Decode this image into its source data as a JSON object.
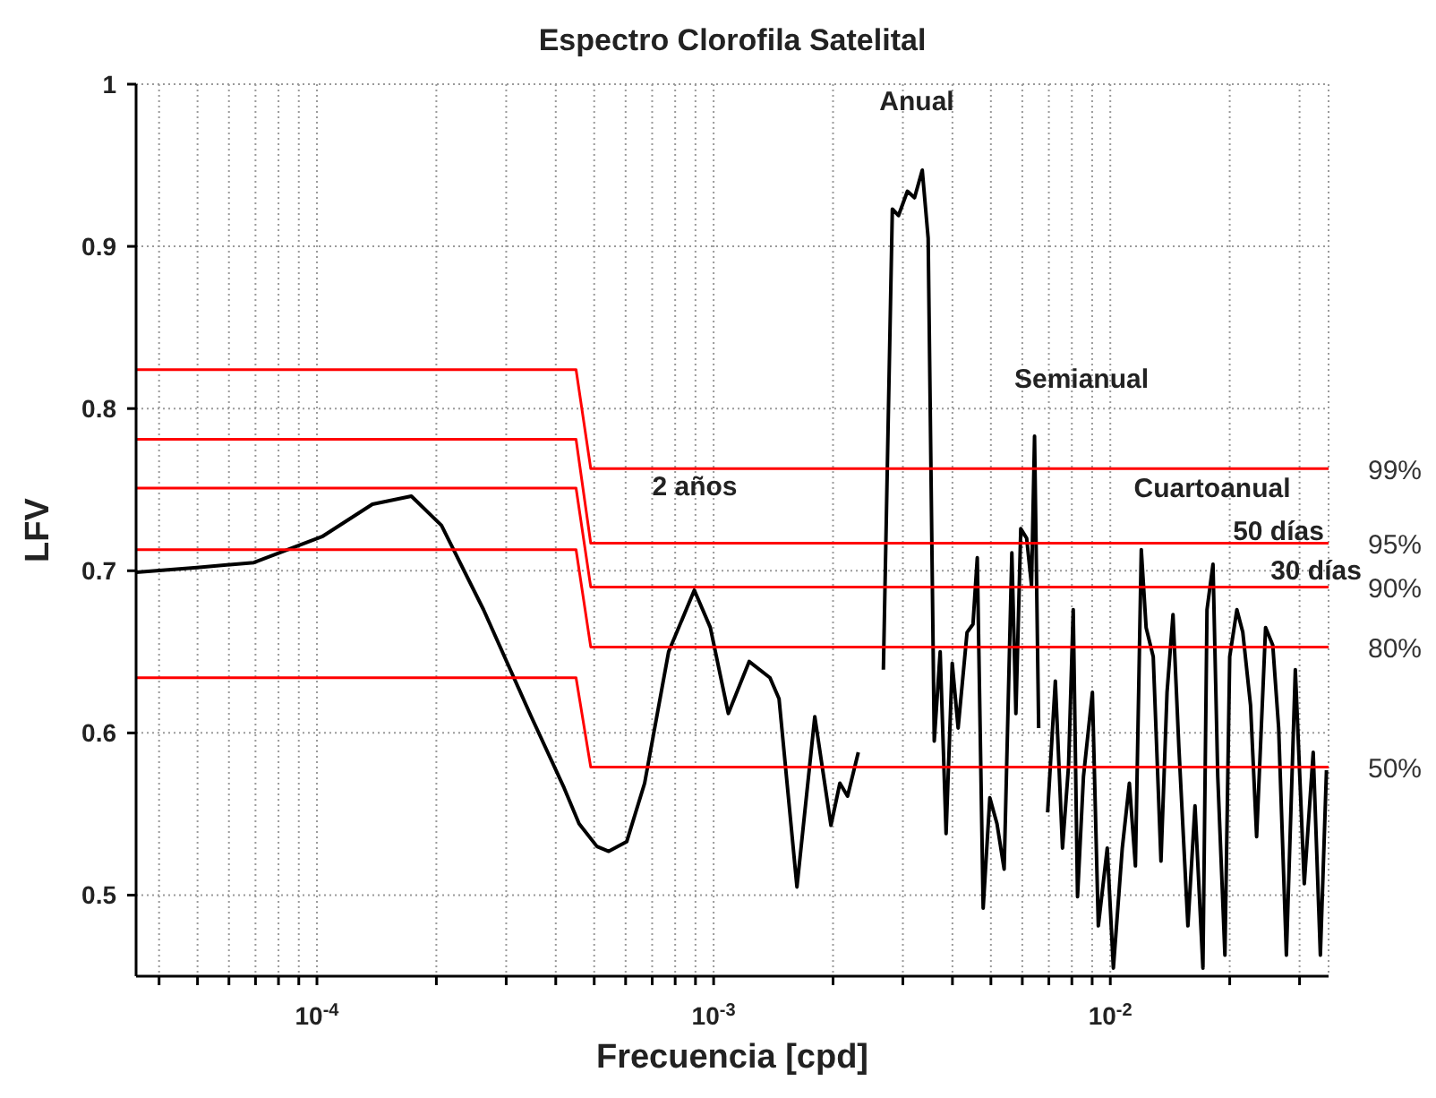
{
  "chart_data": {
    "type": "line",
    "title": "Espectro Clorofila Satelital",
    "xlabel": "Frecuencia [cpd]",
    "ylabel": "LFV",
    "log": "x",
    "grid": true,
    "xlim": [
      3.5e-05,
      0.0355
    ],
    "ylim": [
      0.45,
      1
    ],
    "xticks": [
      {
        "value": 4e-05,
        "label": null
      },
      {
        "value": 5e-05,
        "label": null
      },
      {
        "value": 6e-05,
        "label": null
      },
      {
        "value": 7e-05,
        "label": null
      },
      {
        "value": 8e-05,
        "label": null
      },
      {
        "value": 9e-05,
        "label": null
      },
      {
        "value": 0.0001,
        "label": "10$^{-4}$"
      },
      {
        "value": 0.0002,
        "label": null
      },
      {
        "value": 0.0003,
        "label": null
      },
      {
        "value": 0.0004,
        "label": null
      },
      {
        "value": 0.0005,
        "label": null
      },
      {
        "value": 0.0006,
        "label": null
      },
      {
        "value": 0.0007,
        "label": null
      },
      {
        "value": 0.0008,
        "label": null
      },
      {
        "value": 0.0009,
        "label": null
      },
      {
        "value": 0.001,
        "label": "10$^{-3}$"
      },
      {
        "value": 0.002,
        "label": null
      },
      {
        "value": 0.003,
        "label": null
      },
      {
        "value": 0.004,
        "label": null
      },
      {
        "value": 0.005,
        "label": null
      },
      {
        "value": 0.006,
        "label": null
      },
      {
        "value": 0.007,
        "label": null
      },
      {
        "value": 0.008,
        "label": null
      },
      {
        "value": 0.009,
        "label": null
      },
      {
        "value": 0.01,
        "label": "10$^{-2}$"
      },
      {
        "value": 0.02,
        "label": null
      },
      {
        "value": 0.03,
        "label": null
      }
    ],
    "yticks": [
      0.5,
      0.6,
      0.7,
      0.8,
      0.9,
      1
    ],
    "series": [
      {
        "color": "#000000",
        "x": [
          3.5e-05,
          4.98e-05,
          6.93e-05,
          0.000103,
          0.000138,
          0.000173,
          0.000206,
          0.000263,
          0.000347,
          0.00042,
          0.000458,
          0.000508,
          0.000544,
          0.000604,
          0.00067,
          0.00077,
          0.000894,
          0.000981,
          0.001089,
          0.001229,
          0.001387,
          0.001462,
          0.001622,
          0.001799,
          0.001976,
          0.002081,
          0.002176,
          0.002316,
          0.002589,
          0.002679,
          0.002822,
          0.002924,
          0.00308,
          0.00321,
          0.003357,
          0.003474,
          0.003599,
          0.003725,
          0.003855,
          0.003995,
          0.004134,
          0.004354,
          0.004506,
          0.00462,
          0.004781,
          0.004969,
          0.00518,
          0.0054,
          0.005647,
          0.005781,
          0.005947,
          0.006154,
          0.00633,
          0.006442,
          0.006598,
          0.006716,
          0.00695,
          0.007268,
          0.007577,
          0.007849,
          0.008064,
          0.008268,
          0.008557,
          0.009013,
          0.009328,
          0.009824,
          0.01018,
          0.01072,
          0.01117,
          0.01157,
          0.01197,
          0.01231,
          0.01283,
          0.01342,
          0.0139,
          0.01439,
          0.01489,
          0.01569,
          0.01635,
          0.01712,
          0.01753,
          0.01815,
          0.01866,
          0.01945,
          0.02,
          0.02085,
          0.02158,
          0.02257,
          0.02338,
          0.02463,
          0.02568,
          0.02657,
          0.02779,
          0.02927,
          0.03083,
          0.03247,
          0.03385,
          0.03507
        ],
        "values": [
          0.699,
          0.702,
          0.705,
          0.721,
          0.741,
          0.746,
          0.728,
          0.676,
          0.61,
          0.566,
          0.544,
          0.53,
          0.527,
          0.533,
          0.569,
          0.65,
          0.688,
          0.665,
          0.612,
          0.644,
          0.634,
          0.621,
          0.505,
          0.61,
          0.543,
          0.569,
          0.561,
          0.588,
          null,
          0.639,
          0.923,
          0.919,
          0.934,
          0.93,
          0.947,
          0.905,
          0.595,
          0.65,
          0.538,
          0.643,
          0.603,
          0.662,
          0.667,
          0.708,
          0.492,
          0.56,
          0.544,
          0.516,
          0.711,
          0.612,
          0.726,
          0.72,
          0.691,
          0.783,
          0.603,
          null,
          0.551,
          0.632,
          0.529,
          0.58,
          0.676,
          0.499,
          0.573,
          0.625,
          0.481,
          0.529,
          0.455,
          0.529,
          0.569,
          0.518,
          0.713,
          0.665,
          0.647,
          0.521,
          0.625,
          0.673,
          0.591,
          0.481,
          0.555,
          0.455,
          0.676,
          0.704,
          0.573,
          0.463,
          0.647,
          0.676,
          0.662,
          0.617,
          0.536,
          0.665,
          0.654,
          0.603,
          0.463,
          0.639,
          0.507,
          0.588,
          0.463,
          0.577
        ]
      },
      {
        "name": "99%",
        "color": "#ff0000",
        "x": [
          3.5e-05,
          0.00045,
          0.00049,
          0.0355
        ],
        "values": [
          0.824,
          0.824,
          0.763,
          0.763
        ]
      },
      {
        "name": "95%",
        "color": "#ff0000",
        "x": [
          3.5e-05,
          0.00045,
          0.00049,
          0.0355
        ],
        "values": [
          0.781,
          0.781,
          0.717,
          0.717
        ]
      },
      {
        "name": "90%",
        "color": "#ff0000",
        "x": [
          3.5e-05,
          0.00045,
          0.00049,
          0.0355
        ],
        "values": [
          0.751,
          0.751,
          0.69,
          0.69
        ]
      },
      {
        "name": "80%",
        "color": "#ff0000",
        "x": [
          3.5e-05,
          0.00045,
          0.00049,
          0.0355
        ],
        "values": [
          0.713,
          0.713,
          0.653,
          0.653
        ]
      },
      {
        "name": "50%",
        "color": "#ff0000",
        "x": [
          3.5e-05,
          0.00045,
          0.00049,
          0.0355
        ],
        "values": [
          0.634,
          0.634,
          0.579,
          0.579
        ]
      }
    ],
    "annotations": [
      "Anual",
      "Semianual",
      "2 años",
      "Cuartoanual",
      "50 días",
      "30 días"
    ]
  }
}
